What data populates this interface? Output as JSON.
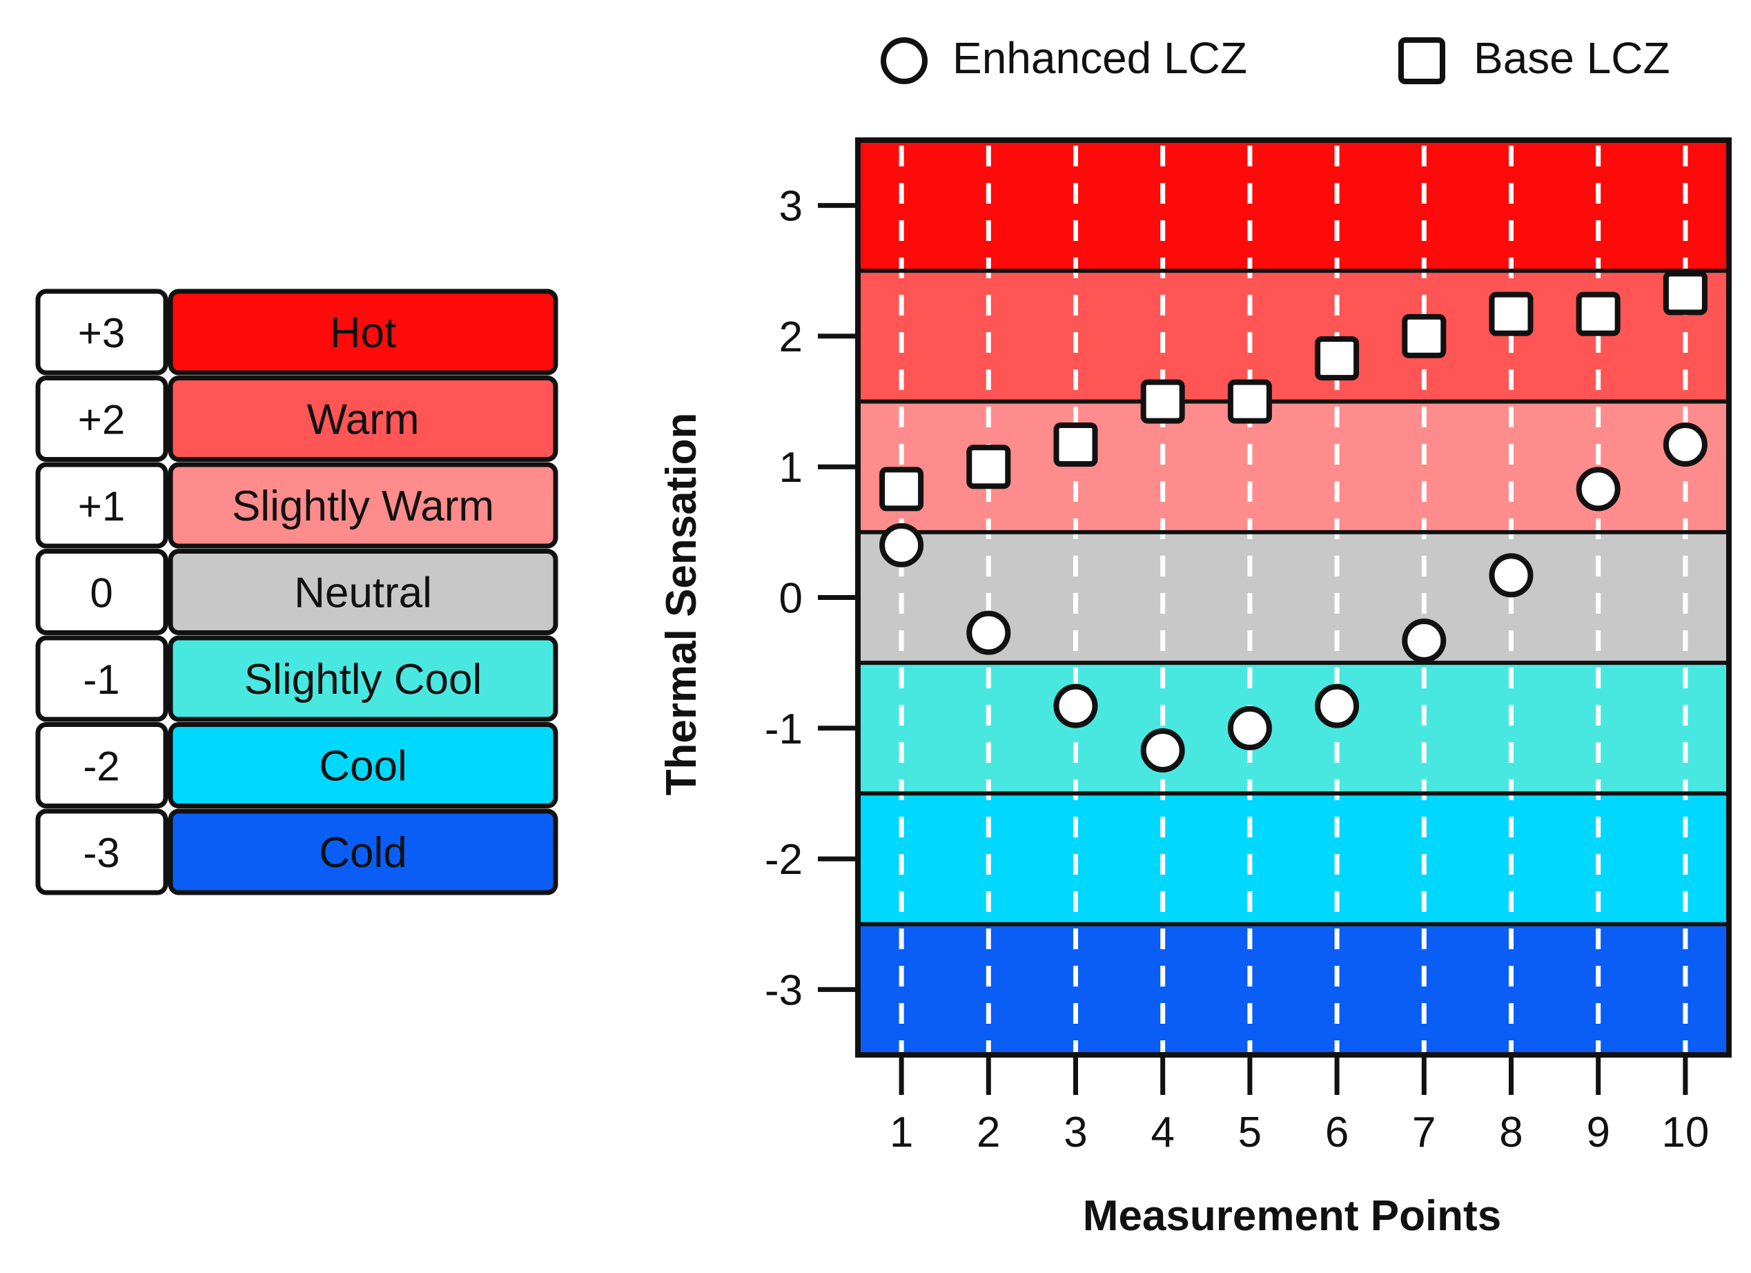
{
  "colors": {
    "hot": "#ff0a0a",
    "warm": "#ff5555",
    "slightly_warm": "#ff8c8c",
    "neutral": "#c8c8c8",
    "slightly_cool": "#48e8e0",
    "cool": "#00d8ff",
    "cold": "#0a5ef5"
  },
  "scale": [
    {
      "code": "+3",
      "label": "Hot",
      "level": 3,
      "color_key": "hot"
    },
    {
      "code": "+2",
      "label": "Warm",
      "level": 2,
      "color_key": "warm"
    },
    {
      "code": "+1",
      "label": "Slightly Warm",
      "level": 1,
      "color_key": "slightly_warm"
    },
    {
      "code": "0",
      "label": "Neutral",
      "level": 0,
      "color_key": "neutral"
    },
    {
      "code": "-1",
      "label": "Slightly Cool",
      "level": -1,
      "color_key": "slightly_cool"
    },
    {
      "code": "-2",
      "label": "Cool",
      "level": -2,
      "color_key": "cool"
    },
    {
      "code": "-3",
      "label": "Cold",
      "level": -3,
      "color_key": "cold"
    }
  ],
  "chart_data": {
    "type": "scatter",
    "title": "",
    "xlabel": "Measurement Points",
    "ylabel": "Thermal Sensation",
    "x": [
      1,
      2,
      3,
      4,
      5,
      6,
      7,
      8,
      9,
      10
    ],
    "x_tick_labels": [
      "1",
      "2",
      "3",
      "4",
      "5",
      "6",
      "7",
      "8",
      "9",
      "10"
    ],
    "y_ticks": [
      3,
      2,
      1,
      0,
      -1,
      -2,
      -3
    ],
    "y_tick_labels": [
      "3",
      "2",
      "1",
      "0",
      "-1",
      "-2",
      "-3"
    ],
    "xlim": [
      0.5,
      10.5
    ],
    "ylim": [
      -3.5,
      3.5
    ],
    "grid": "vertical dashed white",
    "legend_position": "top",
    "series": [
      {
        "name": "Enhanced LCZ",
        "marker": "circle",
        "values": [
          0.4,
          -0.27,
          -0.83,
          -1.17,
          -1.0,
          -0.83,
          -0.33,
          0.17,
          0.83,
          1.17
        ]
      },
      {
        "name": "Base LCZ",
        "marker": "square",
        "values": [
          0.83,
          1.0,
          1.17,
          1.5,
          1.5,
          1.83,
          2.0,
          2.17,
          2.17,
          2.33
        ]
      }
    ]
  }
}
